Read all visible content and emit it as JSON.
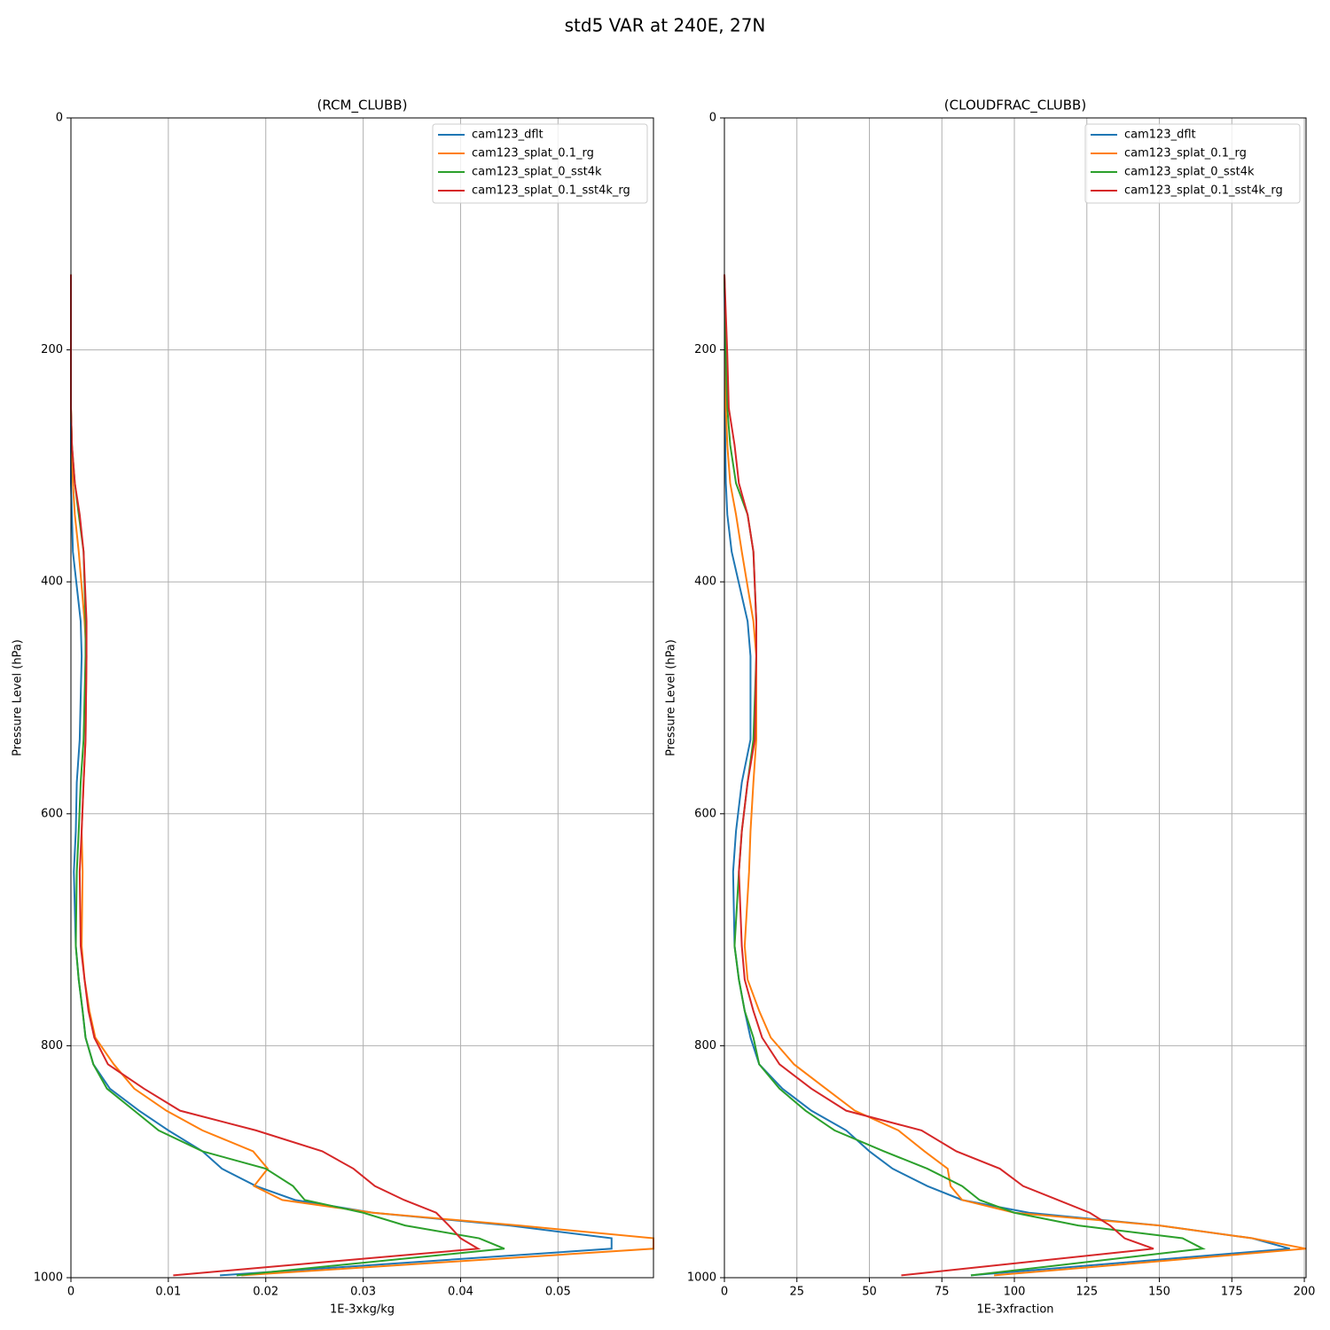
{
  "title": "std5 VAR at 240E, 27N",
  "chart_data": [
    {
      "type": "line",
      "title": "(RCM_CLUBB)",
      "x_label": "1E-3xkg/kg",
      "y_label": "Pressure Level (hPa)",
      "y": [
        135,
        204,
        250,
        282,
        315,
        342,
        374,
        434,
        464,
        536,
        573,
        615,
        650,
        714,
        743,
        770,
        793,
        816,
        837,
        856,
        873,
        891,
        906,
        921,
        933,
        944,
        955,
        966,
        975,
        998
      ],
      "xlim": [
        0,
        0.0598
      ],
      "ylim": [
        1000,
        0
      ],
      "xticks": [
        0.0,
        0.01,
        0.02,
        0.03,
        0.04,
        0.05
      ],
      "yticks": [
        0,
        200,
        400,
        600,
        800,
        1000
      ],
      "grid": true,
      "legend": "upper right",
      "series": [
        {
          "name": "cam123_dflt",
          "color": "#1f77b4",
          "values": [
            0,
            0,
            0,
            0,
            0,
            0.0001,
            0.0002,
            0.001,
            0.0011,
            0.0009,
            0.0006,
            0.0005,
            0.0003,
            0.0005,
            0.0008,
            0.0012,
            0.0015,
            0.0023,
            0.004,
            0.007,
            0.01,
            0.0135,
            0.0155,
            0.019,
            0.023,
            0.031,
            0.045,
            0.0555,
            0.0555,
            0.0153
          ]
        },
        {
          "name": "cam123_splat_0.1_rg",
          "color": "#ff7f0e",
          "values": [
            0,
            0,
            0,
            0.0001,
            0.0002,
            0.0004,
            0.0008,
            0.0014,
            0.0016,
            0.0015,
            0.0013,
            0.0011,
            0.0012,
            0.0011,
            0.0014,
            0.0019,
            0.0025,
            0.0044,
            0.0065,
            0.0098,
            0.0135,
            0.0187,
            0.0202,
            0.0188,
            0.0217,
            0.031,
            0.046,
            0.0598,
            0.0598,
            0.0175
          ]
        },
        {
          "name": "cam123_splat_0_sst4k",
          "color": "#2ca02c",
          "values": [
            0,
            0,
            0,
            0.0001,
            0.0004,
            0.0008,
            0.0013,
            0.0015,
            0.0015,
            0.0013,
            0.001,
            0.0008,
            0.0006,
            0.0005,
            0.0008,
            0.0012,
            0.0015,
            0.0023,
            0.0037,
            0.0065,
            0.009,
            0.0135,
            0.02,
            0.0228,
            0.024,
            0.03,
            0.0343,
            0.0419,
            0.0445,
            0.017
          ]
        },
        {
          "name": "cam123_splat_0.1_sst4k_rg",
          "color": "#d62728",
          "values": [
            0,
            0,
            0,
            0.0001,
            0.0004,
            0.0009,
            0.0013,
            0.0016,
            0.0016,
            0.0015,
            0.0013,
            0.0011,
            0.0009,
            0.001,
            0.0014,
            0.0018,
            0.0024,
            0.0038,
            0.0075,
            0.0112,
            0.019,
            0.0258,
            0.029,
            0.0312,
            0.0342,
            0.0375,
            0.0388,
            0.04,
            0.0418,
            0.0105
          ]
        }
      ]
    },
    {
      "type": "line",
      "title": "(CLOUDFRAC_CLUBB)",
      "x_label": "1E-3xfraction",
      "y_label": "Pressure Level (hPa)",
      "y": [
        135,
        204,
        250,
        282,
        315,
        342,
        374,
        434,
        464,
        536,
        573,
        615,
        650,
        714,
        743,
        770,
        793,
        816,
        837,
        856,
        873,
        891,
        906,
        921,
        933,
        944,
        955,
        966,
        975,
        998
      ],
      "xlim": [
        0,
        200.6
      ],
      "ylim": [
        1000,
        0
      ],
      "xticks": [
        0,
        25,
        50,
        75,
        100,
        125,
        150,
        175,
        200
      ],
      "yticks": [
        0,
        200,
        400,
        600,
        800,
        1000
      ],
      "grid": true,
      "legend": "upper right",
      "series": [
        {
          "name": "cam123_dflt",
          "color": "#1f77b4",
          "values": [
            0,
            0.3,
            0.2,
            0.3,
            0.5,
            1,
            2.5,
            8,
            9,
            9,
            6,
            4,
            3,
            3.5,
            5,
            7,
            9,
            12,
            20,
            30,
            42,
            50,
            58,
            70,
            82,
            105,
            150,
            182,
            195,
            85
          ]
        },
        {
          "name": "cam123_splat_0.1_rg",
          "color": "#ff7f0e",
          "values": [
            0,
            0.5,
            0.5,
            1,
            2,
            4,
            6,
            10,
            11,
            11,
            10,
            9,
            8.5,
            7,
            8,
            12,
            16,
            24,
            35,
            45,
            60,
            69,
            77,
            78,
            82,
            100,
            150,
            182,
            200.6,
            93
          ]
        },
        {
          "name": "cam123_splat_0_sst4k",
          "color": "#2ca02c",
          "values": [
            0,
            0.5,
            1,
            2,
            4,
            8,
            10,
            11,
            11,
            10,
            8,
            6,
            5,
            3.5,
            5,
            7,
            10,
            12,
            19,
            28,
            38,
            55,
            70,
            82,
            88,
            100,
            122,
            158,
            165,
            85
          ]
        },
        {
          "name": "cam123_splat_0.1_sst4k_rg",
          "color": "#d62728",
          "values": [
            0,
            1,
            1.5,
            3.5,
            5,
            8,
            10,
            11,
            11,
            10.5,
            8,
            6,
            5,
            6,
            7,
            10,
            13,
            19,
            30,
            42,
            68,
            80,
            95,
            103,
            115,
            126,
            133,
            138,
            148,
            61
          ]
        }
      ]
    }
  ]
}
